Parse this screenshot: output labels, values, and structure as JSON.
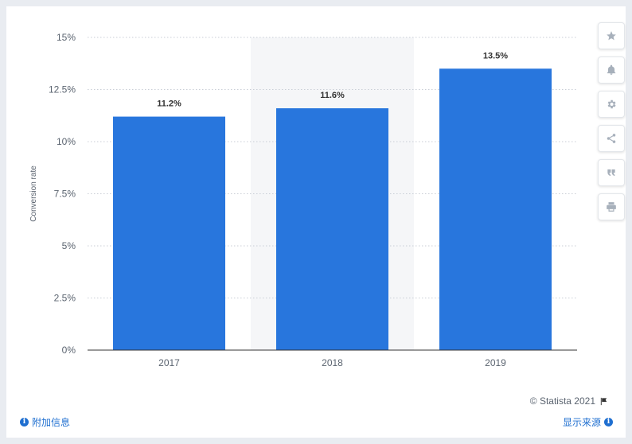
{
  "chart_data": {
    "type": "bar",
    "categories": [
      "2017",
      "2018",
      "2019"
    ],
    "values": [
      11.2,
      11.6,
      13.5
    ],
    "value_labels": [
      "11.2%",
      "11.6%",
      "13.5%"
    ],
    "ylabel": "Conversion rate",
    "ylim": [
      0,
      15
    ],
    "yticks": [
      0,
      2.5,
      5,
      7.5,
      10,
      12.5,
      15
    ],
    "ytick_labels": [
      "0%",
      "2.5%",
      "5%",
      "7.5%",
      "10%",
      "12.5%",
      "15%"
    ],
    "grid": true,
    "highlight_category": "2018",
    "colors": {
      "bar": "#2876dd",
      "highlight_band": "#f5f6f8",
      "grid": "#c9ced6"
    }
  },
  "toolbar": {
    "icons": [
      "star-icon",
      "bell-icon",
      "gear-icon",
      "share-icon",
      "quote-icon",
      "print-icon"
    ]
  },
  "footer": {
    "credit": "© Statista 2021",
    "additional_info": "附加信息",
    "show_source": "显示来源"
  }
}
